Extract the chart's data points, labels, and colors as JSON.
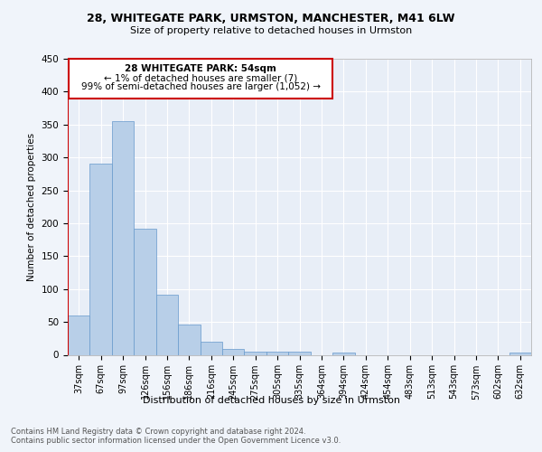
{
  "title_line1": "28, WHITEGATE PARK, URMSTON, MANCHESTER, M41 6LW",
  "title_line2": "Size of property relative to detached houses in Urmston",
  "xlabel": "Distribution of detached houses by size in Urmston",
  "ylabel": "Number of detached properties",
  "categories": [
    "37sqm",
    "67sqm",
    "97sqm",
    "126sqm",
    "156sqm",
    "186sqm",
    "216sqm",
    "245sqm",
    "275sqm",
    "305sqm",
    "335sqm",
    "364sqm",
    "394sqm",
    "424sqm",
    "454sqm",
    "483sqm",
    "513sqm",
    "543sqm",
    "573sqm",
    "602sqm",
    "632sqm"
  ],
  "values": [
    60,
    290,
    355,
    192,
    91,
    46,
    20,
    9,
    5,
    5,
    5,
    0,
    4,
    0,
    0,
    0,
    0,
    0,
    0,
    0,
    4
  ],
  "bar_color": "#b8cfe8",
  "bar_edge_color": "#6699cc",
  "marker_color": "#cc0000",
  "ylim_max": 450,
  "yticks": [
    0,
    50,
    100,
    150,
    200,
    250,
    300,
    350,
    400,
    450
  ],
  "annotation_line1": "28 WHITEGATE PARK: 54sqm",
  "annotation_line2": "← 1% of detached houses are smaller (7)",
  "annotation_line3": "99% of semi-detached houses are larger (1,052) →",
  "footer_line1": "Contains HM Land Registry data © Crown copyright and database right 2024.",
  "footer_line2": "Contains public sector information licensed under the Open Government Licence v3.0.",
  "fig_bg": "#f0f4fa",
  "plot_bg": "#e8eef7",
  "grid_color": "#ffffff"
}
